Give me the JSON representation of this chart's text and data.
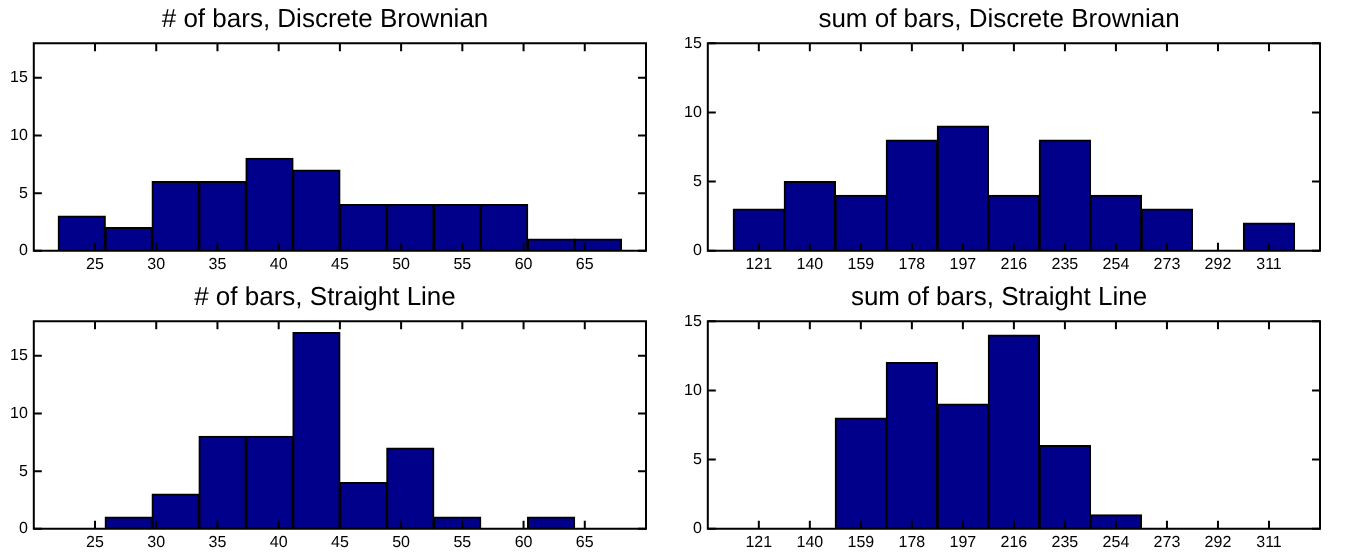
{
  "chart_data": [
    {
      "type": "histogram",
      "title": "# of bars, Discrete Brownian",
      "bins": [
        22,
        25.833,
        29.667,
        33.5,
        37.333,
        41.167,
        45,
        48.833,
        52.667,
        56.5,
        60.333,
        64.167,
        68
      ],
      "values": [
        3,
        2,
        6,
        6,
        8,
        7,
        4,
        4,
        4,
        4,
        1,
        1
      ],
      "color": "#00008b",
      "xlim": [
        20,
        70
      ],
      "xticks": [
        25,
        30,
        35,
        40,
        45,
        50,
        55,
        60,
        65
      ],
      "ylim": [
        0,
        18
      ],
      "yticks": [
        0,
        5,
        10,
        15
      ],
      "grid": false
    },
    {
      "type": "histogram",
      "title": "sum of bars, Discrete Brownian",
      "bins": [
        111.5,
        130.5,
        149.5,
        168.5,
        187.5,
        206.5,
        225.5,
        244.5,
        263.5,
        282.5,
        301.5,
        320.5
      ],
      "values": [
        3,
        5,
        4,
        8,
        9,
        4,
        8,
        4,
        3,
        0,
        2
      ],
      "color": "#00008b",
      "xlim": [
        102,
        330
      ],
      "xticks": [
        121,
        140,
        159,
        178,
        197,
        216,
        235,
        254,
        273,
        292,
        311
      ],
      "ylim": [
        0,
        15
      ],
      "yticks": [
        0,
        5,
        10,
        15
      ],
      "grid": false
    },
    {
      "type": "histogram",
      "title": "# of bars, Straight Line",
      "bins": [
        22,
        25.833,
        29.667,
        33.5,
        37.333,
        41.167,
        45,
        48.833,
        52.667,
        56.5,
        60.333,
        64.167,
        68
      ],
      "values": [
        0,
        1,
        3,
        8,
        8,
        17,
        4,
        7,
        1,
        0,
        1,
        0
      ],
      "color": "#00008b",
      "xlim": [
        20,
        70
      ],
      "xticks": [
        25,
        30,
        35,
        40,
        45,
        50,
        55,
        60,
        65
      ],
      "ylim": [
        0,
        18
      ],
      "yticks": [
        0,
        5,
        10,
        15
      ],
      "grid": false
    },
    {
      "type": "histogram",
      "title": "sum of bars, Straight Line",
      "bins": [
        111.5,
        130.5,
        149.5,
        168.5,
        187.5,
        206.5,
        225.5,
        244.5,
        263.5,
        282.5,
        301.5,
        320.5
      ],
      "values": [
        0,
        0,
        8,
        12,
        9,
        14,
        6,
        1,
        0,
        0,
        0
      ],
      "color": "#00008b",
      "xlim": [
        102,
        330
      ],
      "xticks": [
        121,
        140,
        159,
        178,
        197,
        216,
        235,
        254,
        273,
        292,
        311
      ],
      "ylim": [
        0,
        15
      ],
      "yticks": [
        0,
        5,
        10,
        15
      ],
      "grid": false
    }
  ]
}
